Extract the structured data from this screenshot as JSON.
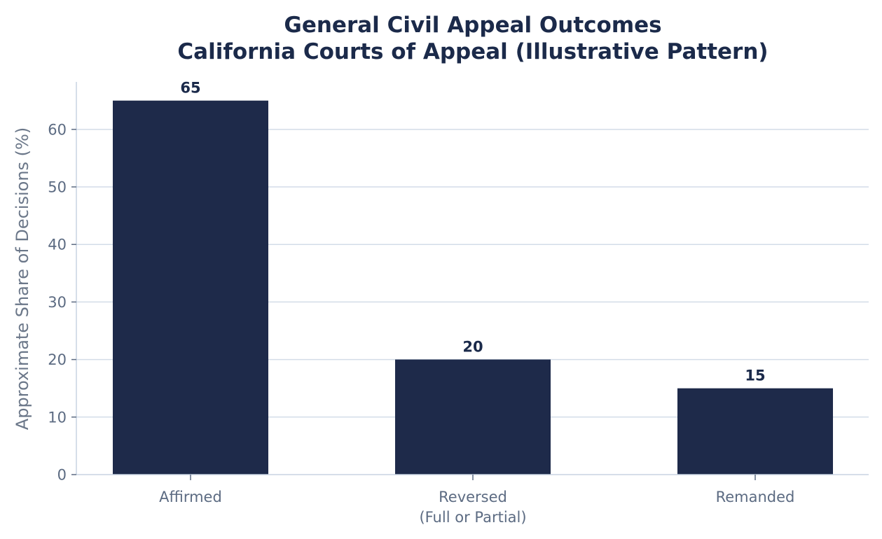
{
  "chart_data": {
    "type": "bar",
    "title": "General Civil Appeal Outcomes",
    "subtitle": "California Courts of Appeal (Illustrative Pattern)",
    "xlabel": "",
    "ylabel": "Approximate Share of Decisions (%)",
    "categories": [
      [
        "Affirmed"
      ],
      [
        "Reversed",
        "(Full or Partial)"
      ],
      [
        "Remanded"
      ]
    ],
    "values": [
      65,
      20,
      15
    ],
    "value_labels": [
      "65",
      "20",
      "15"
    ],
    "yticks": [
      0,
      10,
      20,
      30,
      40,
      50,
      60
    ],
    "ylim": [
      0,
      68.25
    ],
    "grid": "horizontal",
    "legend": "none",
    "colors": {
      "bar": "#1e2a4a",
      "title": "#1b2a4a",
      "value_label": "#1b2a4a",
      "tick": "#5c6b82",
      "axis_label": "#6b7789",
      "grid": "#d3dce8",
      "spine": "#c9d4e2"
    }
  }
}
